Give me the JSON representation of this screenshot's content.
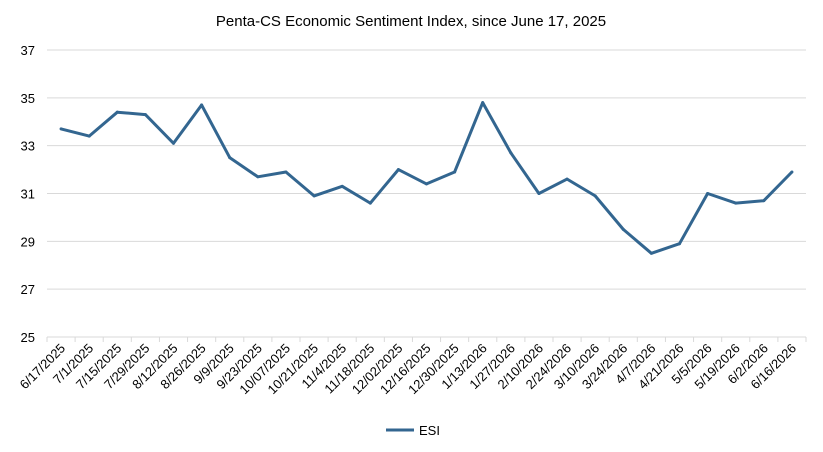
{
  "chart_data": {
    "type": "line",
    "title": "Penta-CS Economic Sentiment Index, since June 17, 2025",
    "xlabel": "",
    "ylabel": "",
    "ylim": [
      25,
      37
    ],
    "yticks": [
      25,
      27,
      29,
      31,
      33,
      35,
      37
    ],
    "grid": true,
    "legend_position": "bottom",
    "categories": [
      "6/17/2025",
      "7/1/2025",
      "7/15/2025",
      "7/29/2025",
      "8/12/2025",
      "8/26/2025",
      "9/9/2025",
      "9/23/2025",
      "10/07/2025",
      "10/21/2025",
      "11/4/2025",
      "11/18/2025",
      "12/02/2025",
      "12/16/2025",
      "12/30/2025",
      "1/13/2026",
      "1/27/2026",
      "2/10/2026",
      "2/24/2026",
      "3/10/2026",
      "3/24/2026",
      "4/7/2026",
      "4/21/2026",
      "5/5/2026",
      "5/19/2026",
      "6/2/2026",
      "6/16/2026"
    ],
    "series": [
      {
        "name": "ESI",
        "color": "#336690",
        "values": [
          33.7,
          33.4,
          34.4,
          34.3,
          33.1,
          34.7,
          32.5,
          31.7,
          31.9,
          30.9,
          31.3,
          30.6,
          32.0,
          31.4,
          31.9,
          34.8,
          32.7,
          31.0,
          31.6,
          30.9,
          29.5,
          28.5,
          28.9,
          31.0,
          30.6,
          30.7,
          31.9
        ]
      }
    ]
  }
}
